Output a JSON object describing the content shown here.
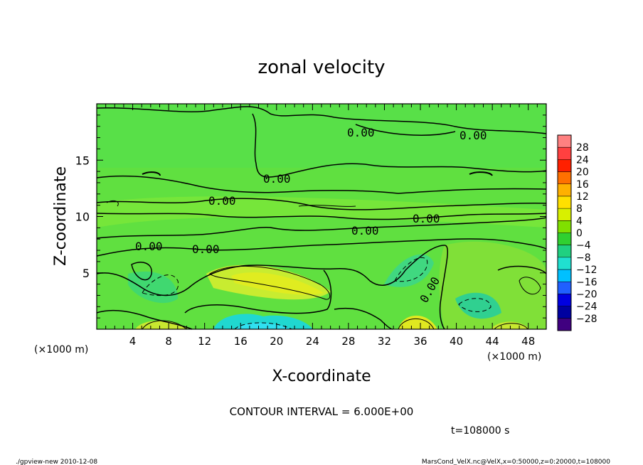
{
  "chart_data": {
    "type": "heatmap",
    "title": "zonal velocity",
    "xlabel": "X-coordinate",
    "ylabel": "Z-coordinate",
    "x_unit_left": "(×1000 m)",
    "x_unit_right": "(×1000 m)",
    "xlim": [
      0,
      50
    ],
    "ylim": [
      0,
      20
    ],
    "x_ticks": [
      "4",
      "8",
      "12",
      "16",
      "20",
      "24",
      "28",
      "32",
      "36",
      "40",
      "44",
      "48"
    ],
    "y_ticks": [
      "5",
      "10",
      "15"
    ],
    "contour_labels": [
      "0.00",
      "0.00",
      "0.00",
      "0.00",
      "0.00",
      "0.00",
      "0.00",
      "0.00",
      "0.00"
    ],
    "contour_interval_text": "CONTOUR INTERVAL = 6.000E+00",
    "time_text": "t=108000 s",
    "colorbar": {
      "labels": [
        "28",
        "24",
        "20",
        "16",
        "12",
        "8",
        "4",
        "0",
        "−4",
        "−8",
        "−12",
        "−16",
        "−20",
        "−24",
        "−28"
      ],
      "colors": [
        "#ff8080",
        "#ff4040",
        "#ff2000",
        "#ff7000",
        "#ffb000",
        "#ffe000",
        "#d8f000",
        "#80e000",
        "#30d030",
        "#20d080",
        "#20e0d0",
        "#00c0ff",
        "#2060ff",
        "#0000e0",
        "#0000a0",
        "#400080"
      ]
    },
    "field_background": "#60e040"
  },
  "footer": {
    "left": "./gpview-new  2010-12-08",
    "right": "MarsCond_VelX.nc@VelX,x=0:50000,z=0:20000,t=108000"
  }
}
